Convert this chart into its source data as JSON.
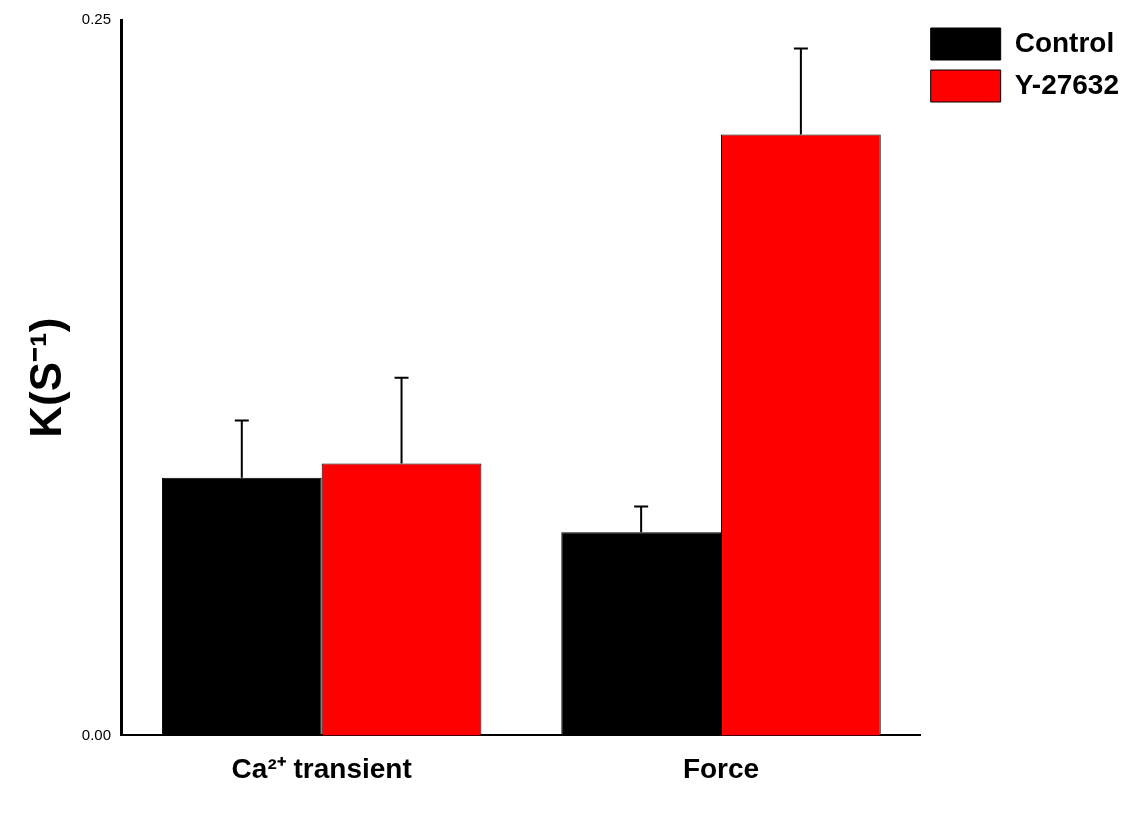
{
  "chart_data": {
    "type": "bar",
    "ylabel": "K(S⁻¹)",
    "categories": [
      "Ca²⁺ transient",
      "Force"
    ],
    "series": [
      {
        "name": "Control",
        "color": "#000000",
        "values": [
          0.09,
          0.071
        ],
        "errors": [
          [
            0.09,
            0.11
          ],
          [
            0.071,
            0.08
          ]
        ]
      },
      {
        "name": "Y-27632",
        "color": "#ff0000",
        "values": [
          0.095,
          0.21
        ],
        "errors": [
          [
            0.095,
            0.125
          ],
          [
            0.21,
            0.24
          ]
        ]
      }
    ],
    "ylim": [
      0,
      0.25
    ],
    "yticks": [
      {
        "value": 0,
        "label": "0.00"
      },
      {
        "value": 0.25,
        "label": "0.25"
      }
    ],
    "grid": false,
    "legend": "top right"
  }
}
